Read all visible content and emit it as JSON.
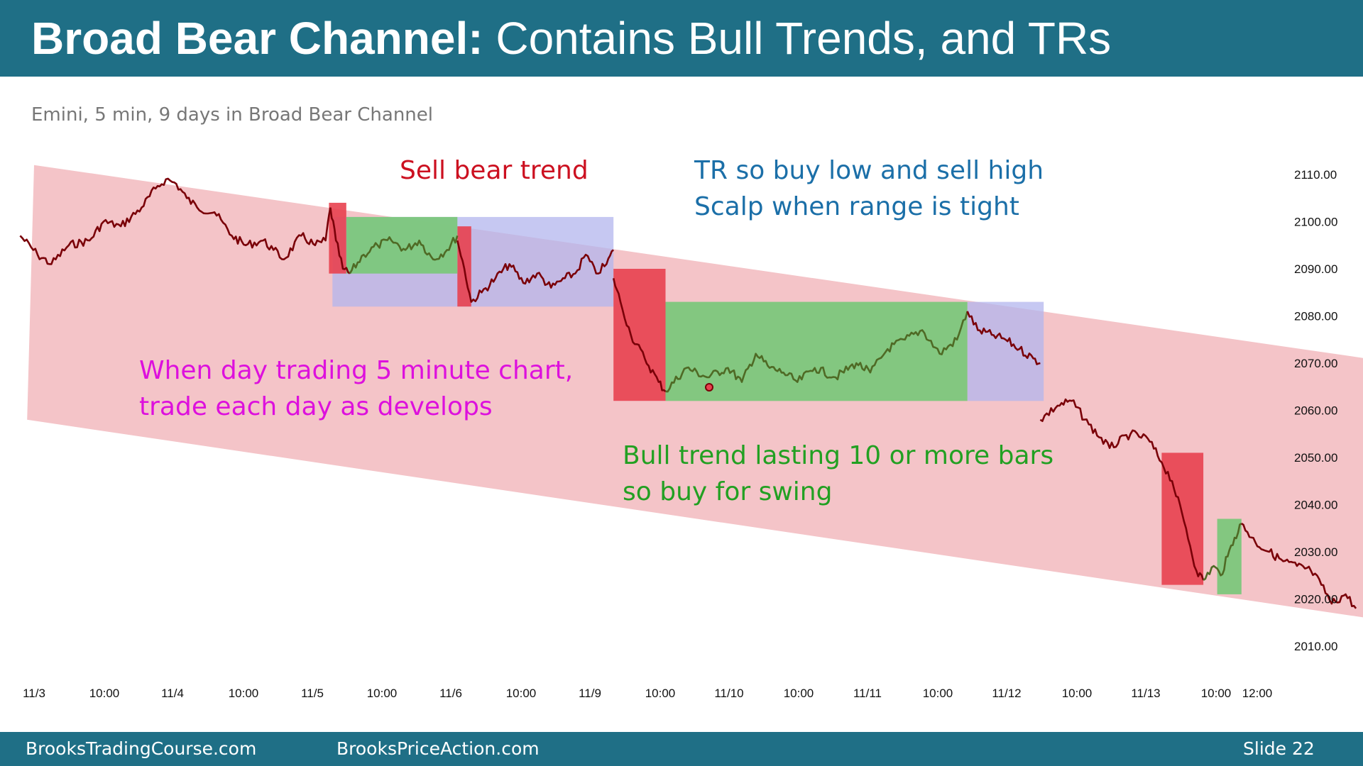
{
  "slide": {
    "title_bold": "Broad Bear Channel:",
    "title_rest": "Contains Bull Trends, and TRs",
    "subtitle": "Emini, 5 min, 9 days in Broad Bear Channel",
    "footer_left": "BrooksTradingCourse.com",
    "footer_center": "BrooksPriceAction.com",
    "footer_right": "Slide  22"
  },
  "annotations": [
    {
      "id": "sell-bear-trend",
      "lines": [
        "Sell bear trend"
      ],
      "color": "#cc1020"
    },
    {
      "id": "tr-buy-low",
      "lines": [
        "TR so buy low and sell high",
        "Scalp when range is tight"
      ],
      "color": "#1b6fa8"
    },
    {
      "id": "day-trading",
      "lines": [
        "When day trading 5 minute chart,",
        "trade each day as develops"
      ],
      "color": "#dd10dd"
    },
    {
      "id": "bull-trend",
      "lines": [
        "Bull trend lasting 10 or more bars",
        "so buy for swing"
      ],
      "color": "#22a022"
    }
  ],
  "colors": {
    "channel": "#f4c4c8",
    "bear_zone": "#e8414f",
    "bull_zone": "#7cc77c",
    "range_zone": "#b3b6ee",
    "price_line": "#7a0008",
    "price_line_bull": "#4f6a25",
    "header_bg": "#1f6f86"
  },
  "chart_data": {
    "type": "line",
    "title": "",
    "xlabel": "",
    "ylabel": "",
    "ylim": [
      2005,
      2115
    ],
    "y_ticks": [
      "2110.00",
      "2100.00",
      "2090.00",
      "2080.00",
      "2070.00",
      "2060.00",
      "2050.00",
      "2040.00",
      "2030.00",
      "2020.00",
      "2010.00"
    ],
    "x_ticks": [
      "11/3",
      "10:00",
      "11/4",
      "10:00",
      "11/5",
      "10:00",
      "11/6",
      "10:00",
      "11/9",
      "10:00",
      "11/10",
      "10:00",
      "11/11",
      "10:00",
      "11/12",
      "10:00",
      "11/13",
      "10:00",
      "12:00"
    ],
    "channel": {
      "upper": [
        [
          0,
          2112
        ],
        [
          19.2,
          2071
        ]
      ],
      "lower": [
        [
          -0.1,
          2058
        ],
        [
          19.2,
          2016
        ]
      ]
    },
    "zones": [
      {
        "type": "bear",
        "x": [
          4.25,
          4.5
        ],
        "y": [
          2089,
          2104
        ]
      },
      {
        "type": "bull",
        "x": [
          4.5,
          6.1
        ],
        "y": [
          2089,
          2101
        ]
      },
      {
        "type": "range",
        "x": [
          4.3,
          8.35
        ],
        "y": [
          2082,
          2101
        ]
      },
      {
        "type": "bear",
        "x": [
          6.1,
          6.3
        ],
        "y": [
          2082,
          2099
        ]
      },
      {
        "type": "bear",
        "x": [
          8.35,
          9.1
        ],
        "y": [
          2062,
          2090
        ]
      },
      {
        "type": "bull",
        "x": [
          9.1,
          13.45
        ],
        "y": [
          2062,
          2083
        ]
      },
      {
        "type": "range",
        "x": [
          13.45,
          14.55
        ],
        "y": [
          2062,
          2083
        ]
      },
      {
        "type": "bear",
        "x": [
          16.25,
          16.85
        ],
        "y": [
          2023,
          2051
        ]
      },
      {
        "type": "bull",
        "x": [
          17.05,
          17.4
        ],
        "y": [
          2021,
          2037
        ]
      }
    ],
    "series": [
      {
        "color": "#7a0008",
        "x": [
          -0.2,
          0.05,
          0.25,
          0.5,
          0.8,
          1.0,
          1.25,
          1.55,
          1.75,
          1.9,
          2.05,
          2.2,
          2.35,
          2.6,
          2.85,
          3.05,
          3.3,
          3.45,
          3.6,
          3.85,
          4.05,
          4.2,
          4.27
        ],
        "y": [
          2097,
          2093,
          2091,
          2095,
          2096,
          2100,
          2099,
          2103,
          2107,
          2109,
          2108,
          2105,
          2103,
          2102,
          2097,
          2095,
          2096,
          2094,
          2092,
          2097,
          2095,
          2096,
          2103
        ]
      },
      {
        "color": "#7a0008",
        "x": [
          4.27,
          4.35,
          4.45,
          4.55
        ],
        "y": [
          2103,
          2096,
          2090,
          2089
        ]
      },
      {
        "color": "#4f6a25",
        "x": [
          4.55,
          4.75,
          4.95,
          5.15,
          5.35,
          5.55,
          5.75,
          5.95,
          6.1
        ],
        "y": [
          2089,
          2093,
          2095,
          2096,
          2094,
          2096,
          2092,
          2094,
          2097
        ]
      },
      {
        "color": "#7a0008",
        "x": [
          6.1,
          6.2,
          6.3,
          6.45,
          6.65,
          6.85,
          7.05,
          7.25,
          7.45,
          7.65,
          7.8,
          7.95,
          8.1,
          8.25,
          8.35
        ],
        "y": [
          2096,
          2090,
          2083,
          2085,
          2088,
          2091,
          2087,
          2089,
          2086,
          2088,
          2089,
          2093,
          2089,
          2091,
          2094
        ]
      },
      {
        "color": "#7a0008",
        "x": [
          8.35,
          8.45,
          8.6,
          8.8,
          9.0,
          9.1
        ],
        "y": [
          2088,
          2083,
          2076,
          2071,
          2066,
          2064
        ]
      },
      {
        "color": "#4f6a25",
        "x": [
          9.1,
          9.4,
          9.7,
          10.0,
          10.2,
          10.4,
          10.6,
          10.8,
          11.0,
          11.25,
          11.55,
          11.85,
          12.05,
          12.3,
          12.55,
          12.8,
          13.05,
          13.3,
          13.45
        ],
        "y": [
          2064,
          2069,
          2067,
          2069,
          2066,
          2072,
          2069,
          2068,
          2066,
          2069,
          2067,
          2070,
          2068,
          2073,
          2075,
          2077,
          2072,
          2075,
          2081
        ]
      },
      {
        "color": "#7a0008",
        "x": [
          13.45,
          13.6,
          13.8,
          14.0,
          14.2,
          14.4,
          14.5
        ],
        "y": [
          2081,
          2077,
          2076,
          2075,
          2073,
          2071,
          2070
        ]
      },
      {
        "color": "#7a0008",
        "x": [
          14.5,
          14.75,
          14.95,
          15.2,
          15.5,
          15.8,
          16.05,
          16.25,
          16.4,
          16.6,
          16.75,
          16.85
        ],
        "y": [
          2058,
          2061,
          2062,
          2057,
          2052,
          2055,
          2054,
          2049,
          2045,
          2035,
          2026,
          2024
        ]
      },
      {
        "color": "#4f6a25",
        "x": [
          16.85,
          17.0,
          17.1,
          17.2,
          17.3,
          17.4
        ],
        "y": [
          2024,
          2027,
          2025,
          2029,
          2033,
          2036
        ]
      },
      {
        "color": "#7a0008",
        "x": [
          17.4,
          17.6,
          17.8,
          18.0,
          18.2,
          18.4,
          18.55,
          18.7,
          18.9,
          19.05
        ],
        "y": [
          2036,
          2032,
          2030,
          2028,
          2027,
          2026,
          2023,
          2019,
          2021,
          2018
        ]
      }
    ]
  }
}
